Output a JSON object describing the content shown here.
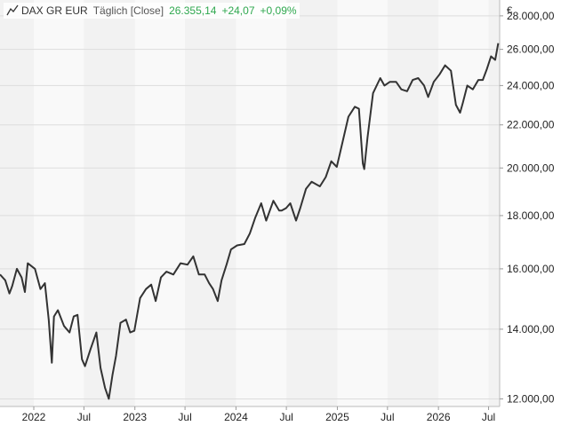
{
  "legend": {
    "icon": "line-chart-icon",
    "instrument": "DAX GR EUR",
    "mode": "Täglich [Close]",
    "last": "26.355,14",
    "change": "+24,07",
    "change_pct": "+0,09%",
    "positive_color": "#2fa84f"
  },
  "chart_data": {
    "type": "line",
    "title": "",
    "xlabel": "",
    "ylabel": "",
    "y_unit": "€",
    "y_scale": "log",
    "ylim": [
      11800,
      29000
    ],
    "xlim": [
      "2021-09-01",
      "2026-08-10"
    ],
    "grid": true,
    "y_ticks": [
      12000,
      14000,
      16000,
      18000,
      20000,
      22000,
      24000,
      26000,
      28000
    ],
    "y_tick_labels": [
      "12.000,00",
      "14.000,00",
      "16.000,00",
      "18.000,00",
      "20.000,00",
      "22.000,00",
      "24.000,00",
      "26.000,00",
      "28.000,00"
    ],
    "x_ticks": [
      "2022-01-01",
      "2022-07-01",
      "2023-01-01",
      "2023-07-01",
      "2024-01-01",
      "2024-07-01",
      "2025-01-01",
      "2025-07-01",
      "2026-01-01",
      "2026-07-01"
    ],
    "x_tick_labels": [
      "2022",
      "Jul",
      "2023",
      "Jul",
      "2024",
      "Jul",
      "2025",
      "Jul",
      "2026",
      "Jul"
    ],
    "series": [
      {
        "color": "#333333",
        "x": [
          "2021-09-01",
          "2021-09-20",
          "2021-10-05",
          "2021-10-15",
          "2021-11-01",
          "2021-11-18",
          "2021-11-30",
          "2021-12-10",
          "2022-01-05",
          "2022-01-25",
          "2022-02-10",
          "2022-02-24",
          "2022-03-07",
          "2022-03-15",
          "2022-03-29",
          "2022-04-20",
          "2022-05-10",
          "2022-05-25",
          "2022-06-08",
          "2022-06-24",
          "2022-07-05",
          "2022-07-25",
          "2022-08-15",
          "2022-08-30",
          "2022-09-15",
          "2022-09-29",
          "2022-10-12",
          "2022-10-25",
          "2022-11-10",
          "2022-11-30",
          "2022-12-15",
          "2022-12-30",
          "2023-01-20",
          "2023-02-10",
          "2023-03-01",
          "2023-03-17",
          "2023-04-05",
          "2023-04-25",
          "2023-05-20",
          "2023-06-15",
          "2023-07-10",
          "2023-07-31",
          "2023-08-20",
          "2023-09-10",
          "2023-09-26",
          "2023-10-10",
          "2023-10-27",
          "2023-11-10",
          "2023-11-28",
          "2023-12-14",
          "2024-01-05",
          "2024-01-31",
          "2024-02-20",
          "2024-03-10",
          "2024-04-01",
          "2024-04-19",
          "2024-05-15",
          "2024-06-05",
          "2024-06-14",
          "2024-06-30",
          "2024-07-15",
          "2024-08-05",
          "2024-08-20",
          "2024-09-10",
          "2024-09-30",
          "2024-10-15",
          "2024-10-30",
          "2024-11-20",
          "2024-12-10",
          "2024-12-30",
          "2025-01-20",
          "2025-02-10",
          "2025-03-05",
          "2025-03-20",
          "2025-04-03",
          "2025-04-08",
          "2025-04-20",
          "2025-05-10",
          "2025-06-05",
          "2025-06-20",
          "2025-07-10",
          "2025-08-01",
          "2025-08-20",
          "2025-09-10",
          "2025-09-30",
          "2025-10-20",
          "2025-11-10",
          "2025-11-25",
          "2025-12-15",
          "2026-01-05",
          "2026-01-25",
          "2026-02-15",
          "2026-03-05",
          "2026-03-20",
          "2026-03-30",
          "2026-04-15",
          "2026-05-05",
          "2026-05-25",
          "2026-06-10",
          "2026-06-25",
          "2026-07-10",
          "2026-07-25",
          "2026-08-05"
        ],
        "y": [
          15800,
          15600,
          15150,
          15400,
          16000,
          15700,
          15200,
          16200,
          16000,
          15300,
          15500,
          14300,
          13000,
          14400,
          14600,
          14100,
          13900,
          14400,
          14450,
          13100,
          12900,
          13400,
          13900,
          12850,
          12300,
          12000,
          12650,
          13200,
          14200,
          14300,
          13900,
          13950,
          15000,
          15300,
          15450,
          14900,
          15700,
          15900,
          15800,
          16200,
          16150,
          16450,
          15800,
          15800,
          15500,
          15300,
          14900,
          15600,
          16150,
          16700,
          16850,
          16900,
          17300,
          17900,
          18500,
          17800,
          18600,
          18200,
          18200,
          18300,
          18500,
          17800,
          18300,
          19100,
          19400,
          19300,
          19200,
          19600,
          20300,
          20050,
          21200,
          22400,
          22900,
          22800,
          20200,
          19950,
          21400,
          23600,
          24400,
          24000,
          24200,
          24200,
          23800,
          23700,
          24300,
          24400,
          24000,
          23400,
          24200,
          24600,
          25100,
          24800,
          23000,
          22600,
          23100,
          24000,
          23800,
          24300,
          24300,
          24900,
          25600,
          25400,
          26355
        ]
      }
    ]
  }
}
